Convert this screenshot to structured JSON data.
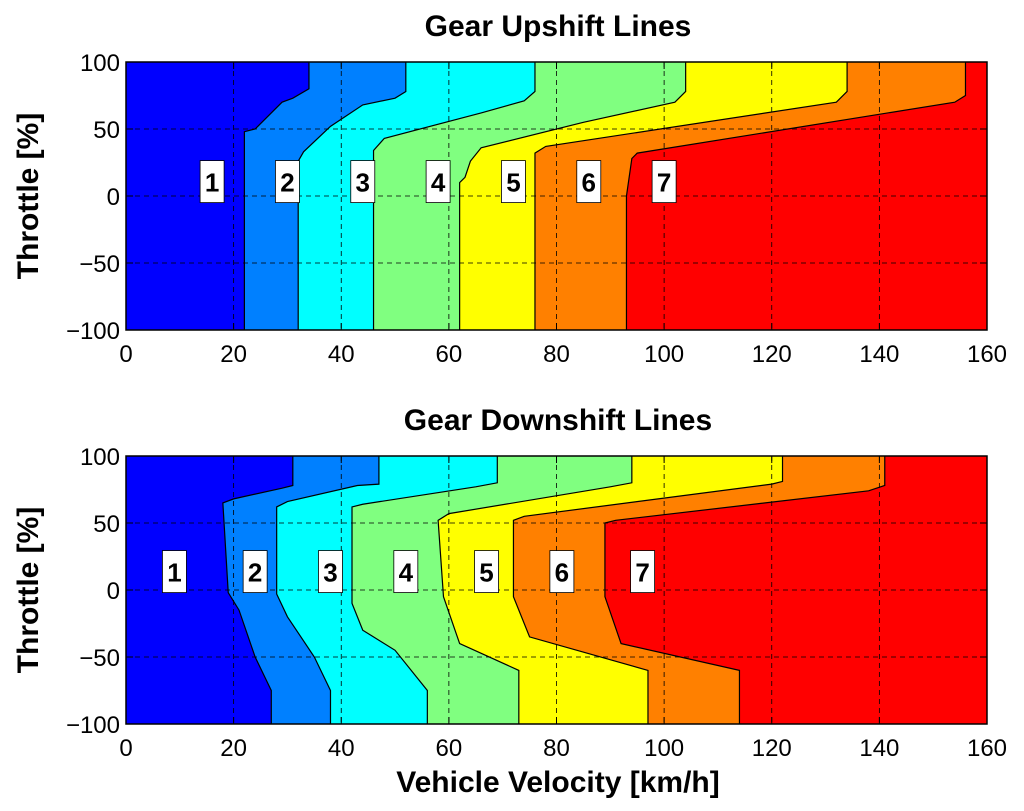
{
  "chart_data": [
    {
      "type": "area",
      "title": "Gear Upshift Lines",
      "xlabel": "",
      "ylabel": "Throttle [%]",
      "xlim": [
        0,
        160
      ],
      "ylim": [
        -100,
        100
      ],
      "x_ticks": [
        0,
        20,
        40,
        60,
        80,
        100,
        120,
        140,
        160
      ],
      "y_ticks": [
        -100,
        -50,
        0,
        50,
        100
      ],
      "x_tick_labels": [
        "0",
        "20",
        "40",
        "60",
        "80",
        "100",
        "120",
        "140",
        "160"
      ],
      "y_tick_labels": [
        "−100",
        "−50",
        "0",
        "50",
        "100"
      ],
      "grid": true,
      "region_colors": [
        "#0000ff",
        "#0080ff",
        "#00ffff",
        "#80ff80",
        "#ffff00",
        "#ff8000",
        "#ff0000"
      ],
      "shift_lines": [
        {
          "name": "1→2",
          "points": [
            [
              22,
              -100
            ],
            [
              22,
              48
            ],
            [
              24,
              50
            ],
            [
              29,
              70
            ],
            [
              31,
              73
            ],
            [
              34,
              80
            ],
            [
              34,
              100
            ]
          ]
        },
        {
          "name": "2→3",
          "points": [
            [
              32,
              -100
            ],
            [
              32,
              26
            ],
            [
              33,
              33
            ],
            [
              38,
              52
            ],
            [
              44,
              68
            ],
            [
              50,
              73
            ],
            [
              52,
              78
            ],
            [
              52,
              100
            ]
          ]
        },
        {
          "name": "3→4",
          "points": [
            [
              46,
              -100
            ],
            [
              46,
              34
            ],
            [
              48,
              43
            ],
            [
              66,
              62
            ],
            [
              74,
              71
            ],
            [
              76,
              78
            ],
            [
              76,
              100
            ]
          ]
        },
        {
          "name": "4→5",
          "points": [
            [
              62,
              -100
            ],
            [
              62,
              10
            ],
            [
              63,
              14
            ],
            [
              64,
              26
            ],
            [
              66,
              36
            ],
            [
              85,
              55
            ],
            [
              102,
              70
            ],
            [
              104,
              78
            ],
            [
              104,
              100
            ]
          ]
        },
        {
          "name": "5→6",
          "points": [
            [
              76,
              -100
            ],
            [
              76,
              32
            ],
            [
              78,
              37
            ],
            [
              132,
              70
            ],
            [
              134,
              78
            ],
            [
              134,
              100
            ]
          ]
        },
        {
          "name": "6→7",
          "points": [
            [
              93,
              -100
            ],
            [
              93,
              0
            ],
            [
              94,
              28
            ],
            [
              95,
              32
            ],
            [
              154,
              70
            ],
            [
              156,
              75
            ],
            [
              156,
              100
            ]
          ]
        }
      ],
      "gear_labels": [
        {
          "text": "1",
          "x": 16,
          "y": 10
        },
        {
          "text": "2",
          "x": 30,
          "y": 10
        },
        {
          "text": "3",
          "x": 44,
          "y": 10
        },
        {
          "text": "4",
          "x": 58,
          "y": 10
        },
        {
          "text": "5",
          "x": 72,
          "y": 10
        },
        {
          "text": "6",
          "x": 86,
          "y": 10
        },
        {
          "text": "7",
          "x": 100,
          "y": 10
        }
      ]
    },
    {
      "type": "area",
      "title": "Gear Downshift Lines",
      "xlabel": "Vehicle Velocity [km/h]",
      "ylabel": "Throttle [%]",
      "xlim": [
        0,
        160
      ],
      "ylim": [
        -100,
        100
      ],
      "x_ticks": [
        0,
        20,
        40,
        60,
        80,
        100,
        120,
        140,
        160
      ],
      "y_ticks": [
        -100,
        -50,
        0,
        50,
        100
      ],
      "x_tick_labels": [
        "0",
        "20",
        "40",
        "60",
        "80",
        "100",
        "120",
        "140",
        "160"
      ],
      "y_tick_labels": [
        "−100",
        "−50",
        "0",
        "50",
        "100"
      ],
      "grid": true,
      "region_colors": [
        "#0000ff",
        "#0080ff",
        "#00ffff",
        "#80ff80",
        "#ffff00",
        "#ff8000",
        "#ff0000"
      ],
      "shift_lines": [
        {
          "name": "2→1",
          "points": [
            [
              27,
              -100
            ],
            [
              27,
              -75
            ],
            [
              24,
              -50
            ],
            [
              21,
              -15
            ],
            [
              19,
              -2
            ],
            [
              18,
              65
            ],
            [
              20,
              68
            ],
            [
              29,
              76
            ],
            [
              31,
              78
            ],
            [
              31,
              100
            ]
          ]
        },
        {
          "name": "3→2",
          "points": [
            [
              38,
              -100
            ],
            [
              38,
              -75
            ],
            [
              35,
              -50
            ],
            [
              30,
              -20
            ],
            [
              28,
              -3
            ],
            [
              28,
              62
            ],
            [
              30,
              66
            ],
            [
              43,
              78
            ],
            [
              47,
              79
            ],
            [
              47,
              100
            ]
          ]
        },
        {
          "name": "4→3",
          "points": [
            [
              56,
              -100
            ],
            [
              56,
              -75
            ],
            [
              50,
              -45
            ],
            [
              44,
              -30
            ],
            [
              42,
              -10
            ],
            [
              42,
              62
            ],
            [
              44,
              64
            ],
            [
              65,
              77
            ],
            [
              69,
              80
            ],
            [
              69,
              100
            ]
          ]
        },
        {
          "name": "5→4",
          "points": [
            [
              73,
              -100
            ],
            [
              73,
              -60
            ],
            [
              62,
              -40
            ],
            [
              59,
              -5
            ],
            [
              58,
              52
            ],
            [
              60,
              57
            ],
            [
              90,
              77
            ],
            [
              94,
              80
            ],
            [
              94,
              100
            ]
          ]
        },
        {
          "name": "6→5",
          "points": [
            [
              97,
              -100
            ],
            [
              97,
              -60
            ],
            [
              75,
              -35
            ],
            [
              72,
              -5
            ],
            [
              72,
              52
            ],
            [
              74,
              55
            ],
            [
              120,
              79
            ],
            [
              122,
              81
            ],
            [
              122,
              100
            ]
          ]
        },
        {
          "name": "7→6",
          "points": [
            [
              114,
              -100
            ],
            [
              114,
              -60
            ],
            [
              92,
              -40
            ],
            [
              89,
              -5
            ],
            [
              89,
              50
            ],
            [
              91,
              52
            ],
            [
              138,
              74
            ],
            [
              141,
              78
            ],
            [
              141,
              100
            ]
          ]
        }
      ],
      "gear_labels": [
        {
          "text": "1",
          "x": 9,
          "y": 13
        },
        {
          "text": "2",
          "x": 24,
          "y": 13
        },
        {
          "text": "3",
          "x": 38,
          "y": 13
        },
        {
          "text": "4",
          "x": 52,
          "y": 13
        },
        {
          "text": "5",
          "x": 67,
          "y": 13
        },
        {
          "text": "6",
          "x": 81,
          "y": 13
        },
        {
          "text": "7",
          "x": 96,
          "y": 13
        }
      ]
    }
  ]
}
